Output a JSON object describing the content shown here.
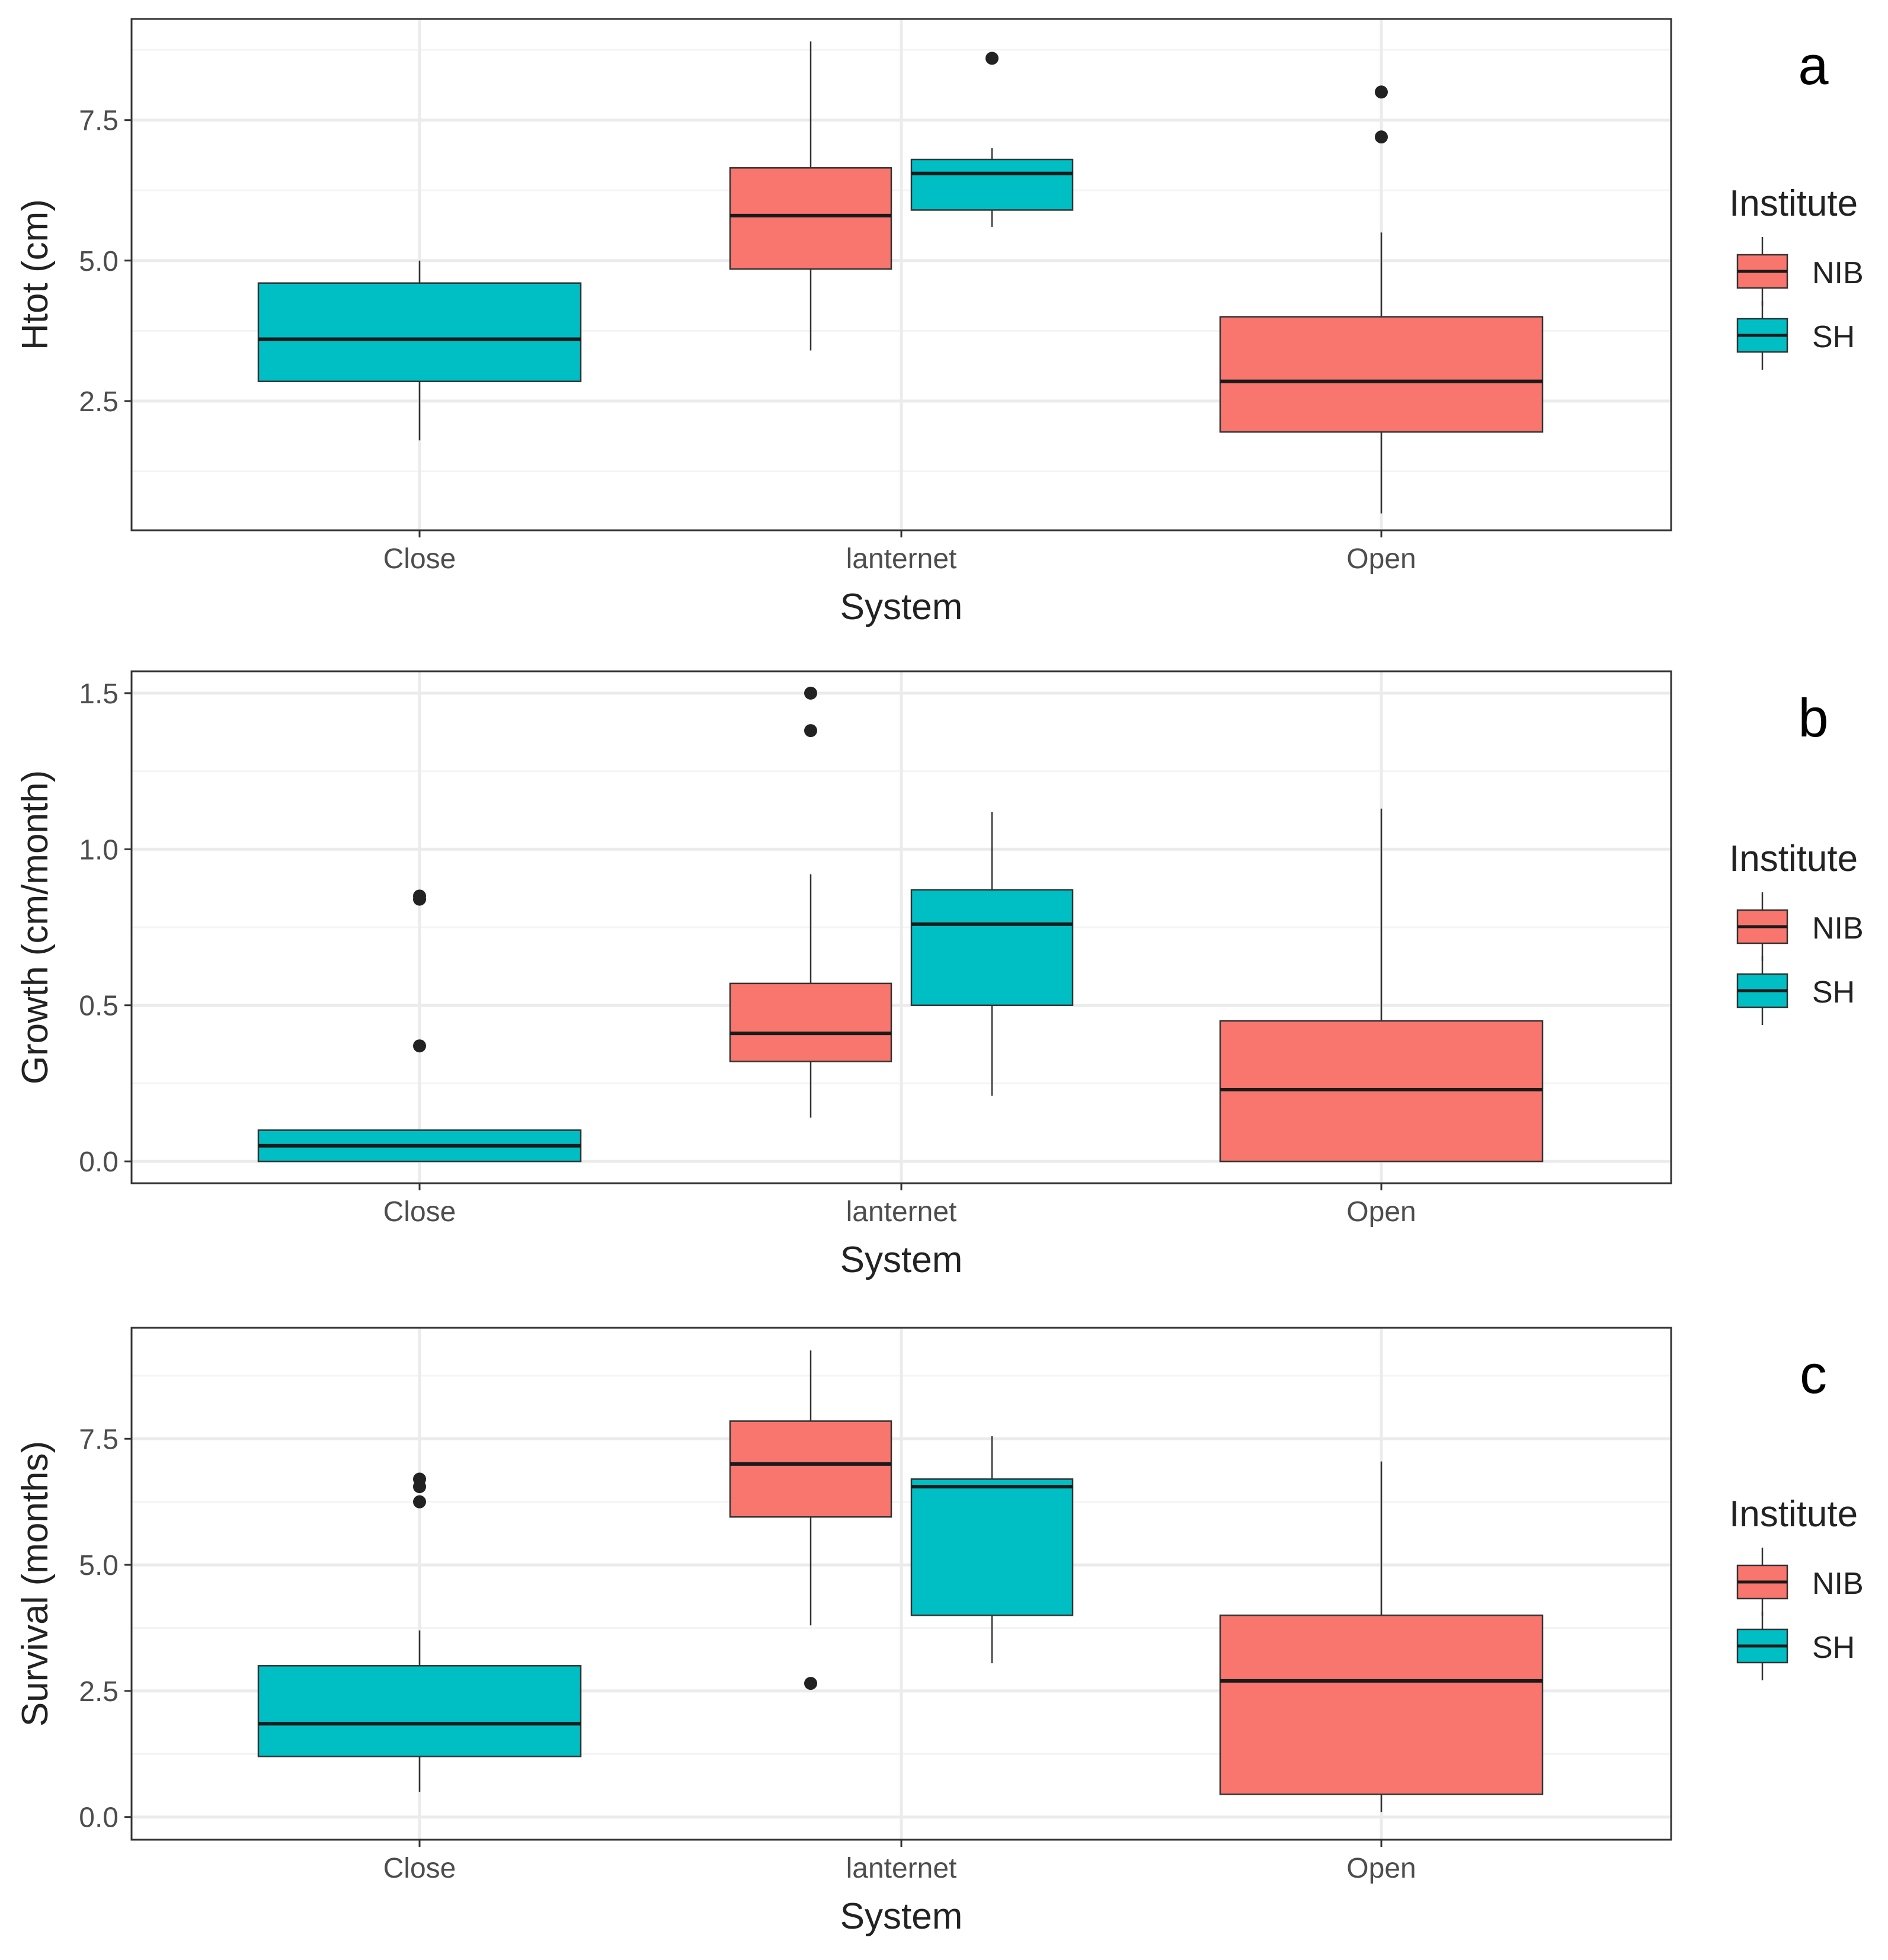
{
  "chart_data": [
    {
      "panel_label": "a",
      "type": "boxplot",
      "xlabel": "System",
      "ylabel": "Htot (cm)",
      "categories": [
        "Close",
        "lanternet",
        "Open"
      ],
      "ylim": [
        0.2,
        9.3
      ],
      "yticks": [
        2.5,
        5.0,
        7.5
      ],
      "ytick_labels": [
        "2.5",
        "5.0",
        "7.5"
      ],
      "legend": {
        "title": "Institute",
        "position": "right"
      },
      "grid": true,
      "boxes": [
        {
          "category": "Close",
          "institute": "SH",
          "offset": 0,
          "whisker_low": 1.8,
          "q1": 2.85,
          "median": 3.6,
          "q3": 4.6,
          "whisker_high": 5.0,
          "outliers": []
        },
        {
          "category": "lanternet",
          "institute": "NIB",
          "offset": -1,
          "whisker_low": 3.4,
          "q1": 4.85,
          "median": 5.8,
          "q3": 6.65,
          "whisker_high": 8.9,
          "outliers": []
        },
        {
          "category": "lanternet",
          "institute": "SH",
          "offset": 1,
          "whisker_low": 5.6,
          "q1": 5.9,
          "median": 6.55,
          "q3": 6.8,
          "whisker_high": 7.0,
          "outliers": [
            8.6
          ]
        },
        {
          "category": "Open",
          "institute": "NIB",
          "offset": 0,
          "whisker_low": 0.5,
          "q1": 1.95,
          "median": 2.85,
          "q3": 4.0,
          "whisker_high": 5.5,
          "outliers": [
            7.2,
            8.0
          ]
        }
      ]
    },
    {
      "panel_label": "b",
      "type": "boxplot",
      "xlabel": "System",
      "ylabel": "Growth (cm/month)",
      "categories": [
        "Close",
        "lanternet",
        "Open"
      ],
      "ylim": [
        -0.07,
        1.57
      ],
      "yticks": [
        0.0,
        0.5,
        1.0,
        1.5
      ],
      "ytick_labels": [
        "0.0",
        "0.5",
        "1.0",
        "1.5"
      ],
      "legend": {
        "title": "Institute",
        "position": "right"
      },
      "grid": true,
      "boxes": [
        {
          "category": "Close",
          "institute": "SH",
          "offset": 0,
          "whisker_low": 0.0,
          "q1": 0.0,
          "median": 0.05,
          "q3": 0.1,
          "whisker_high": 0.1,
          "outliers": [
            0.37,
            0.84,
            0.85
          ]
        },
        {
          "category": "lanternet",
          "institute": "NIB",
          "offset": -1,
          "whisker_low": 0.14,
          "q1": 0.32,
          "median": 0.41,
          "q3": 0.57,
          "whisker_high": 0.92,
          "outliers": [
            1.38,
            1.5
          ]
        },
        {
          "category": "lanternet",
          "institute": "SH",
          "offset": 1,
          "whisker_low": 0.21,
          "q1": 0.5,
          "median": 0.76,
          "q3": 0.87,
          "whisker_high": 1.12,
          "outliers": []
        },
        {
          "category": "Open",
          "institute": "NIB",
          "offset": 0,
          "whisker_low": 0.0,
          "q1": 0.0,
          "median": 0.23,
          "q3": 0.45,
          "whisker_high": 1.13,
          "outliers": []
        }
      ]
    },
    {
      "panel_label": "c",
      "type": "boxplot",
      "xlabel": "System",
      "ylabel": "Survival (months)",
      "categories": [
        "Close",
        "lanternet",
        "Open"
      ],
      "ylim": [
        -0.45,
        9.7
      ],
      "yticks": [
        0.0,
        2.5,
        5.0,
        7.5
      ],
      "ytick_labels": [
        "0.0",
        "2.5",
        "5.0",
        "7.5"
      ],
      "legend": {
        "title": "Institute",
        "position": "right"
      },
      "grid": true,
      "boxes": [
        {
          "category": "Close",
          "institute": "SH",
          "offset": 0,
          "whisker_low": 0.5,
          "q1": 1.2,
          "median": 1.85,
          "q3": 3.0,
          "whisker_high": 3.7,
          "outliers": [
            6.25,
            6.55,
            6.7
          ]
        },
        {
          "category": "lanternet",
          "institute": "NIB",
          "offset": -1,
          "whisker_low": 3.8,
          "q1": 5.95,
          "median": 7.0,
          "q3": 7.85,
          "whisker_high": 9.25,
          "outliers": [
            2.65
          ]
        },
        {
          "category": "lanternet",
          "institute": "SH",
          "offset": 1,
          "whisker_low": 3.05,
          "q1": 4.0,
          "median": 6.55,
          "q3": 6.7,
          "whisker_high": 7.55,
          "outliers": []
        },
        {
          "category": "Open",
          "institute": "NIB",
          "offset": 0,
          "whisker_low": 0.1,
          "q1": 0.45,
          "median": 2.7,
          "q3": 4.0,
          "whisker_high": 7.05,
          "outliers": []
        }
      ]
    }
  ],
  "legend_items": [
    {
      "label": "NIB",
      "color": "#F8766D"
    },
    {
      "label": "SH",
      "color": "#00BFC4"
    }
  ],
  "colors": {
    "NIB": "#F8766D",
    "SH": "#00BFC4",
    "outline": "#333333",
    "grid_major": "#EBEBEB",
    "grid_minor": "#F4F4F4",
    "panel_border": "#333333",
    "point": "#222222"
  }
}
